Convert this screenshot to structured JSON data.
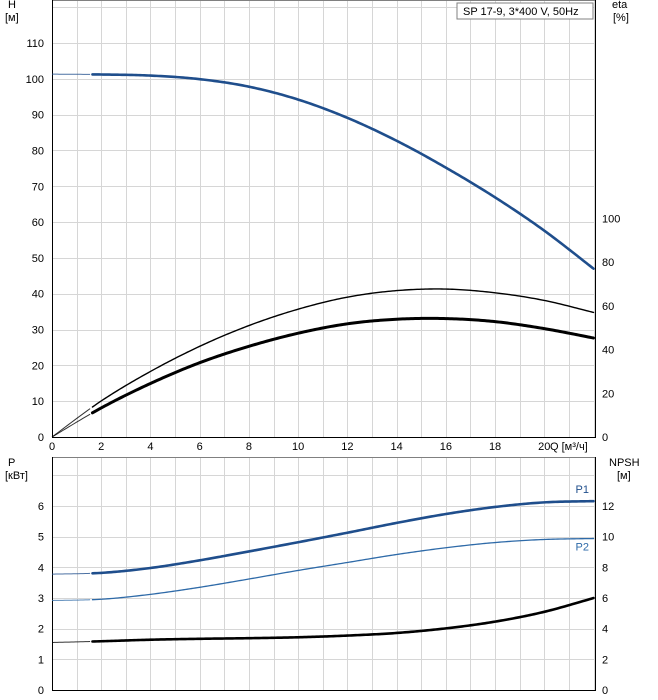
{
  "chart_data": [
    {
      "type": "line",
      "title_box": "SP 17-9, 3*400 V, 50Hz",
      "x_axis": {
        "label": "Q [м³/ч]",
        "range": [
          0,
          22.1
        ],
        "ticks": [
          0,
          2,
          4,
          6,
          8,
          10,
          12,
          14,
          16,
          18,
          20
        ],
        "grid_step": 1
      },
      "y_left": {
        "label_line1": "H",
        "label_line2": "[м]",
        "range": [
          0,
          122
        ],
        "ticks": [
          0,
          10,
          20,
          30,
          40,
          50,
          60,
          70,
          80,
          90,
          100,
          110
        ]
      },
      "y_right": {
        "label_line1": "eta",
        "label_line2": "[%]",
        "range": [
          0,
          200
        ],
        "ticks": [
          0,
          20,
          40,
          60,
          80,
          100
        ]
      },
      "grid": true,
      "series": [
        {
          "axis": "left",
          "color": "#1f4e8c",
          "width": 2.6,
          "points": [
            [
              0,
              101.3
            ],
            [
              2,
              101.2
            ],
            [
              4,
              100.9
            ],
            [
              6,
              99.9
            ],
            [
              8,
              97.8
            ],
            [
              10,
              94.2
            ],
            [
              12,
              89.1
            ],
            [
              14,
              82.7
            ],
            [
              16,
              75.2
            ],
            [
              18,
              66.9
            ],
            [
              20,
              57.6
            ],
            [
              22,
              47.0
            ]
          ],
          "start_x": 1.6
        },
        {
          "axis": "right",
          "color": "#000000",
          "width": 1.4,
          "points": [
            [
              0,
              0
            ],
            [
              2,
              16.5
            ],
            [
              4,
              30.0
            ],
            [
              6,
              41.5
            ],
            [
              8,
              51.0
            ],
            [
              10,
              58.5
            ],
            [
              12,
              64.0
            ],
            [
              14,
              67.0
            ],
            [
              16,
              67.7
            ],
            [
              18,
              66.0
            ],
            [
              20,
              62.5
            ],
            [
              22,
              57.0
            ]
          ],
          "start_x": 1.6
        },
        {
          "axis": "right",
          "color": "#000000",
          "width": 3.0,
          "points": [
            [
              0,
              0
            ],
            [
              2,
              13.3
            ],
            [
              4,
              24.5
            ],
            [
              6,
              34.0
            ],
            [
              8,
              41.5
            ],
            [
              10,
              47.5
            ],
            [
              12,
              51.8
            ],
            [
              14,
              53.9
            ],
            [
              16,
              54.2
            ],
            [
              18,
              52.8
            ],
            [
              20,
              49.6
            ],
            [
              22,
              45.3
            ]
          ],
          "start_x": 1.6
        }
      ]
    },
    {
      "type": "line",
      "x_axis": {
        "range": [
          0,
          22.1
        ],
        "grid_step": 1
      },
      "y_left": {
        "label_line1": "P",
        "label_line2": "[кВт]",
        "range": [
          0,
          7.6
        ],
        "ticks": [
          0,
          1,
          2,
          3,
          4,
          5,
          6
        ]
      },
      "y_right": {
        "label_line1": "NPSH",
        "label_line2": "[м]",
        "range": [
          0,
          15.2
        ],
        "ticks": [
          0,
          2,
          4,
          6,
          8,
          10,
          12
        ]
      },
      "grid": true,
      "series": [
        {
          "name": "P1",
          "axis": "left",
          "color": "#1f4e8c",
          "width": 2.6,
          "points": [
            [
              0,
              3.78
            ],
            [
              2,
              3.82
            ],
            [
              4,
              3.98
            ],
            [
              6,
              4.23
            ],
            [
              8,
              4.52
            ],
            [
              10,
              4.82
            ],
            [
              12,
              5.13
            ],
            [
              14,
              5.45
            ],
            [
              16,
              5.74
            ],
            [
              18,
              5.97
            ],
            [
              20,
              6.12
            ],
            [
              22,
              6.16
            ]
          ],
          "start_x": 1.6
        },
        {
          "name": "P2",
          "axis": "left",
          "color": "#2e6aa8",
          "width": 1.3,
          "points": [
            [
              0,
              2.92
            ],
            [
              2,
              2.96
            ],
            [
              4,
              3.12
            ],
            [
              6,
              3.35
            ],
            [
              8,
              3.62
            ],
            [
              10,
              3.9
            ],
            [
              12,
              4.16
            ],
            [
              14,
              4.42
            ],
            [
              16,
              4.64
            ],
            [
              18,
              4.81
            ],
            [
              20,
              4.91
            ],
            [
              22,
              4.94
            ]
          ],
          "start_x": 1.6
        },
        {
          "axis": "right",
          "color": "#000000",
          "width": 2.6,
          "points": [
            [
              0,
              3.1
            ],
            [
              2,
              3.18
            ],
            [
              4,
              3.28
            ],
            [
              6,
              3.34
            ],
            [
              8,
              3.38
            ],
            [
              10,
              3.44
            ],
            [
              12,
              3.55
            ],
            [
              14,
              3.72
            ],
            [
              16,
              4.02
            ],
            [
              18,
              4.46
            ],
            [
              20,
              5.1
            ],
            [
              22,
              6.0
            ]
          ],
          "start_x": 1.6
        }
      ]
    }
  ]
}
